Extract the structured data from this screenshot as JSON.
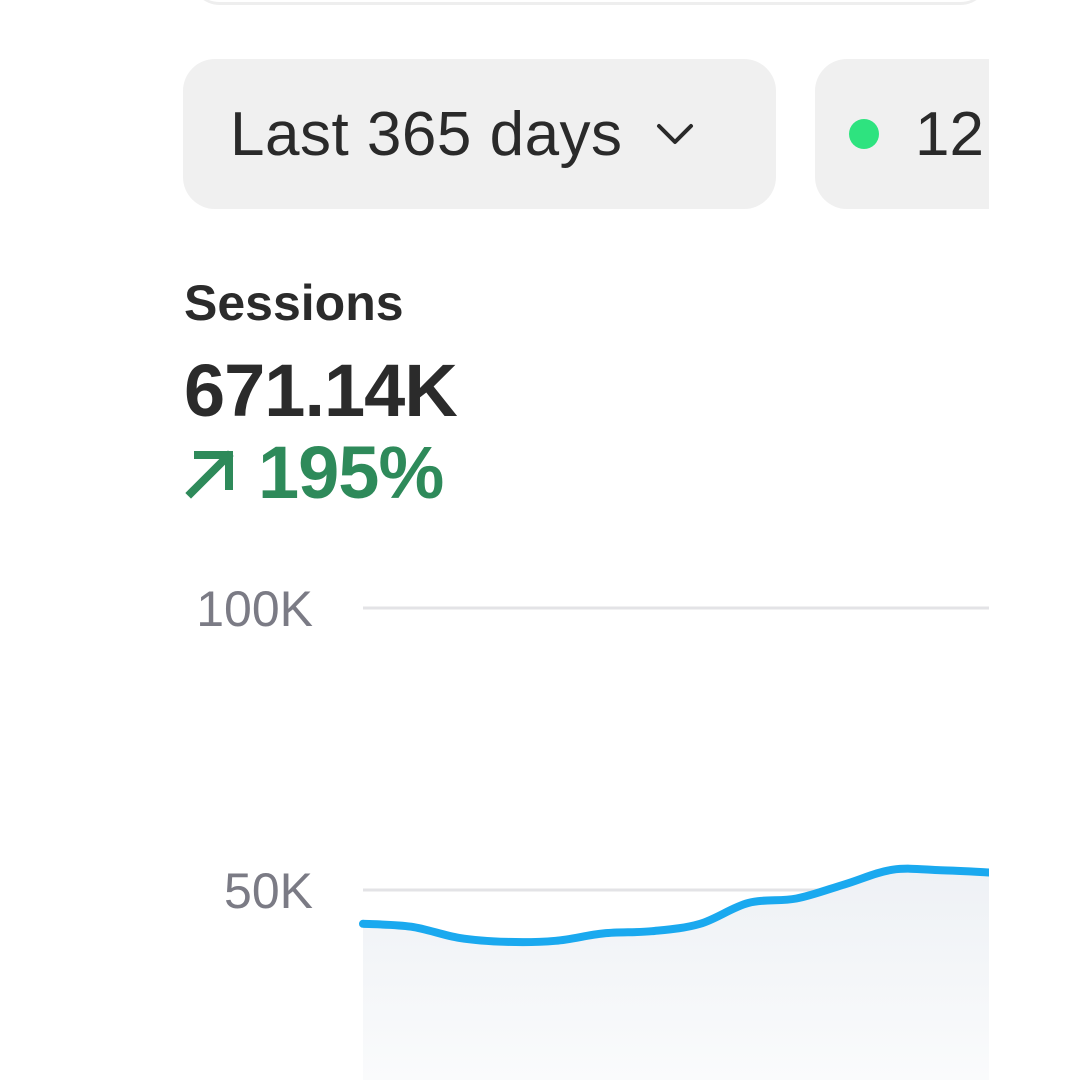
{
  "date_range": {
    "label": "Last 365 days",
    "icon": "chevron-down-icon"
  },
  "live_visitors": {
    "count": "12",
    "status_color": "#2ee37f"
  },
  "metric": {
    "title": "Sessions",
    "value": "671.14K",
    "change": "195%",
    "change_direction": "up",
    "change_icon": "arrow-up-right-icon",
    "change_color": "#2e8a5a"
  },
  "chart_data": {
    "type": "area",
    "title": "",
    "xlabel": "",
    "ylabel": "",
    "ylim": [
      0,
      100000
    ],
    "yticks": [
      {
        "value": 100000,
        "label": "100K"
      },
      {
        "value": 50000,
        "label": "50K"
      }
    ],
    "grid": true,
    "line_color": "#1aa9ef",
    "series": [
      {
        "values": [
          44000,
          43500,
          41500,
          40800,
          41000,
          42300,
          42700,
          44000,
          47700,
          48500,
          51000,
          53600,
          53500,
          53100
        ]
      }
    ]
  }
}
